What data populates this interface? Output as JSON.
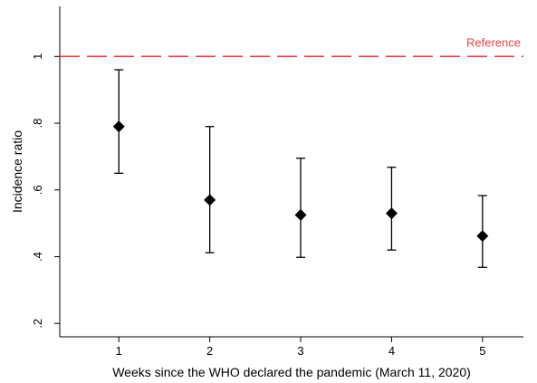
{
  "chart_data": {
    "type": "scatter",
    "title": "",
    "xlabel": "Weeks since the WHO declared the pandemic (March 11, 2020)",
    "ylabel": "Incidence ratio",
    "x": [
      1,
      2,
      3,
      4,
      5
    ],
    "x_tick_labels": [
      "1",
      "2",
      "3",
      "4",
      "5"
    ],
    "y_ticks": [
      0.2,
      0.4,
      0.6,
      0.8,
      1.0
    ],
    "y_tick_labels": [
      ".2",
      ".4",
      ".6",
      ".8",
      "1"
    ],
    "xlim": [
      0.35,
      5.45
    ],
    "ylim": [
      0.16,
      1.15
    ],
    "series": [
      {
        "point": [
          0.79,
          0.57,
          0.525,
          0.53,
          0.462
        ],
        "ci_low": [
          0.65,
          0.412,
          0.398,
          0.42,
          0.368
        ],
        "ci_high": [
          0.96,
          0.79,
          0.695,
          0.668,
          0.583
        ],
        "marker": "diamond",
        "color": "#000000"
      }
    ],
    "reference_line": {
      "y": 1.0,
      "label": "Reference",
      "color": "#e8434a",
      "style": "dashed"
    },
    "grid": false,
    "legend": "none"
  }
}
